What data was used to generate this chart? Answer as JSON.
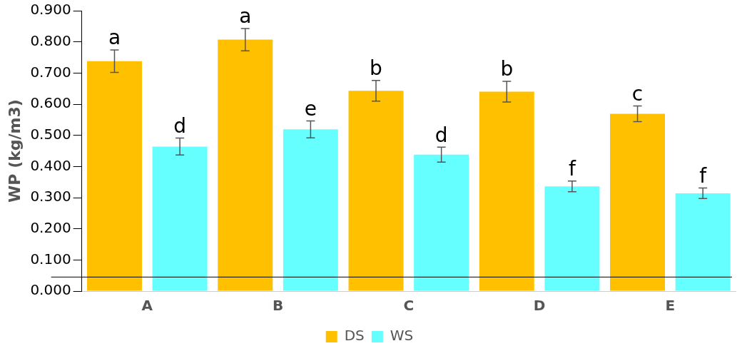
{
  "chart_data": {
    "type": "bar",
    "ylabel": "WP (kg/m3)",
    "categories": [
      "A",
      "B",
      "C",
      "D",
      "E"
    ],
    "series": [
      {
        "name": "DS",
        "color": "#ffc000",
        "values": [
          0.738,
          0.807,
          0.643,
          0.64,
          0.569
        ],
        "errors": [
          0.036,
          0.036,
          0.033,
          0.033,
          0.025
        ],
        "value_labels": [
          "a",
          "a",
          "b",
          "b",
          "c"
        ]
      },
      {
        "name": "WS",
        "color": "#66ffff",
        "values": [
          0.464,
          0.519,
          0.438,
          0.336,
          0.314
        ],
        "errors": [
          0.027,
          0.027,
          0.024,
          0.017,
          0.017
        ],
        "value_labels": [
          "d",
          "e",
          "d",
          "f",
          "f"
        ]
      }
    ],
    "ylim": [
      0,
      0.9
    ],
    "yticks": [
      {
        "value": 0,
        "label": "0.000"
      },
      {
        "value": 0.1,
        "label": "0.100"
      },
      {
        "value": 0.2,
        "label": "0.200"
      },
      {
        "value": 0.3,
        "label": "0.300"
      },
      {
        "value": 0.4,
        "label": "0.400"
      },
      {
        "value": 0.5,
        "label": "0.500"
      },
      {
        "value": 0.6,
        "label": "0.600"
      },
      {
        "value": 0.7,
        "label": "0.700"
      },
      {
        "value": 0.8,
        "label": "0.800"
      },
      {
        "value": 0.9,
        "label": "0.900"
      }
    ],
    "ref_lines": [
      {
        "axis": "y",
        "value": 0.045,
        "color": "#000000"
      }
    ],
    "grid": false,
    "legend": "bottom"
  }
}
